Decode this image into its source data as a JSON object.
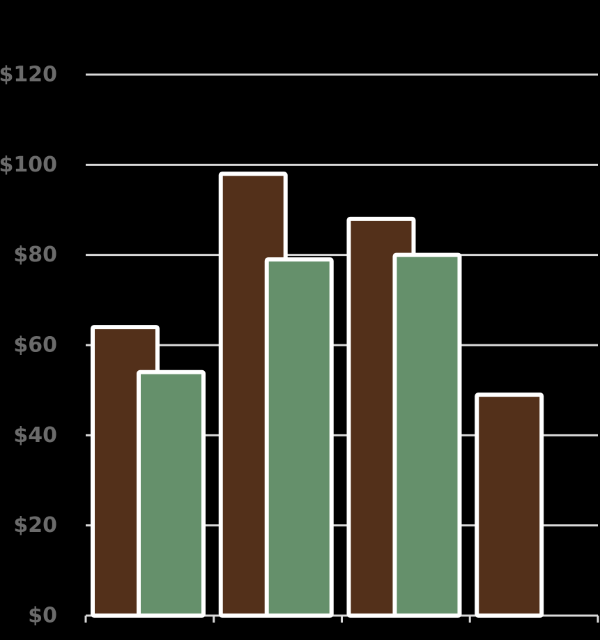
{
  "chart_data": {
    "type": "bar",
    "title": "",
    "xlabel": "",
    "ylabel": "",
    "categories": [
      "",
      "",
      "",
      ""
    ],
    "series": [
      {
        "color": "#53301a",
        "values": [
          64,
          98,
          88,
          49
        ]
      },
      {
        "color": "#65906b",
        "values": [
          54,
          79,
          80,
          null
        ]
      }
    ],
    "ylim": [
      0,
      120
    ],
    "yticks": [
      0,
      20,
      40,
      60,
      80,
      100,
      120
    ],
    "ytick_labels": [
      "$0",
      "$20",
      "$40",
      "$60",
      "$80",
      "$100",
      "$120"
    ],
    "grid": true,
    "legend": "none",
    "colors": {
      "background": "#000000",
      "grid": "#d9d9d9",
      "bar_outline": "#ffffff",
      "tick_label": "#6b6b6b"
    }
  }
}
